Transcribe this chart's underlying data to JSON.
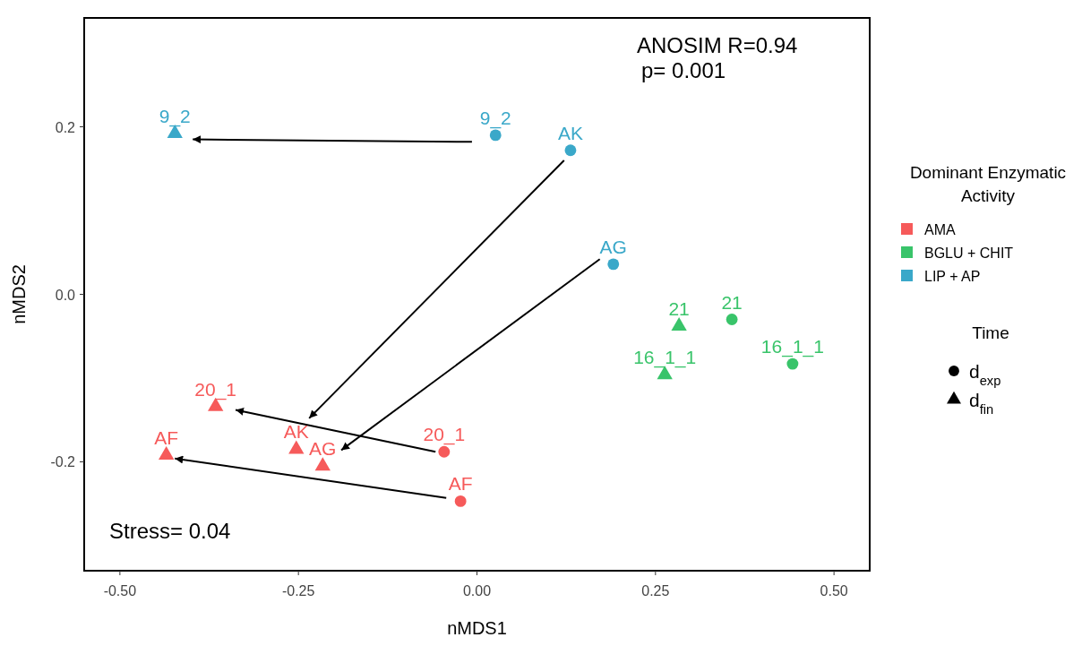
{
  "chart_data": {
    "type": "scatter",
    "xlabel": "nMDS1",
    "ylabel": "nMDS2",
    "legend_title": [
      "Dominant Enzymatic Activity",
      "Time"
    ],
    "legend": "right",
    "grid": false,
    "xlim": [
      -0.55,
      0.55
    ],
    "ylim": [
      -0.33,
      0.33
    ],
    "xticks": [
      {
        "value": -0.5,
        "label": "-0.50"
      },
      {
        "value": -0.25,
        "label": "-0.25"
      },
      {
        "value": 0,
        "label": "0.00"
      },
      {
        "value": 0.25,
        "label": "0.25"
      },
      {
        "value": 0.5,
        "label": "0.50"
      }
    ],
    "yticks": [
      {
        "value": -0.2,
        "label": "-0.2"
      },
      {
        "value": 0,
        "label": "0.0"
      },
      {
        "value": 0.2,
        "label": "0.2"
      }
    ],
    "annotations": [
      "ANOSIM R=0.94",
      "p= 0.001",
      "Stress= 0.04",
      "d$_{exp}$",
      "d$_{fin}$",
      {
        "text": "20_1",
        "x": -0.046,
        "y": -0.188
      },
      {
        "text": "AF",
        "x": -0.023,
        "y": -0.247
      },
      {
        "text": "21",
        "x": 0.357,
        "y": -0.03
      },
      {
        "text": "16_1_1",
        "x": 0.442,
        "y": -0.083
      },
      {
        "text": "9_2",
        "x": 0.026,
        "y": 0.19
      },
      {
        "text": "AK",
        "x": 0.131,
        "y": 0.172
      },
      {
        "text": "AG",
        "x": 0.191,
        "y": 0.036
      },
      {
        "text": "20_1",
        "x": -0.366,
        "y": -0.134
      },
      {
        "text": "AK",
        "x": -0.253,
        "y": -0.185
      },
      {
        "text": "AG",
        "x": -0.216,
        "y": -0.205
      },
      {
        "text": "AF",
        "x": -0.435,
        "y": -0.192
      },
      {
        "text": "21",
        "x": 0.283,
        "y": -0.038
      },
      {
        "text": "16_1_1",
        "x": 0.263,
        "y": -0.096
      },
      {
        "text": "9_2",
        "x": -0.423,
        "y": 0.192
      }
    ],
    "series": [
      {
        "name": "AMA",
        "color": "#f65a5a",
        "marker": "circle",
        "x": [
          -0.046,
          -0.023
        ],
        "values": [
          -0.188,
          -0.247
        ]
      },
      {
        "name": "BGLU + CHIT",
        "color": "#39c46a",
        "marker": "circle",
        "x": [
          0.357,
          0.442
        ],
        "values": [
          -0.03,
          -0.083
        ]
      },
      {
        "name": "LIP + AP",
        "color": "#3aa8c9",
        "marker": "circle",
        "x": [
          0.026,
          0.131,
          0.191
        ],
        "values": [
          0.19,
          0.172,
          0.036
        ]
      },
      {
        "color": "#f65a5a",
        "marker": "triangle",
        "x": [
          -0.366,
          -0.253,
          -0.216,
          -0.435
        ],
        "values": [
          -0.134,
          -0.185,
          -0.205,
          -0.192
        ]
      },
      {
        "color": "#39c46a",
        "marker": "triangle",
        "x": [
          0.283,
          0.263
        ],
        "values": [
          -0.038,
          -0.096
        ]
      },
      {
        "color": "#3aa8c9",
        "marker": "triangle",
        "x": [
          -0.423
        ],
        "values": [
          0.192
        ]
      },
      {
        "type": "line",
        "color": "#000000",
        "marker": "none",
        "x": [
          -0.007,
          -0.398
        ],
        "values": [
          0.182,
          0.185
        ]
      },
      {
        "type": "line",
        "color": "#000000",
        "marker": "none",
        "x": [
          0.122,
          -0.235
        ],
        "values": [
          0.16,
          -0.148
        ]
      },
      {
        "type": "line",
        "color": "#000000",
        "marker": "none",
        "x": [
          0.172,
          -0.19
        ],
        "values": [
          0.042,
          -0.186
        ]
      },
      {
        "type": "line",
        "color": "#000000",
        "marker": "none",
        "x": [
          -0.058,
          -0.338
        ],
        "values": [
          -0.188,
          -0.138
        ]
      },
      {
        "type": "line",
        "color": "#000000",
        "marker": "none",
        "x": [
          -0.043,
          -0.423
        ],
        "values": [
          -0.243,
          -0.196
        ]
      }
    ]
  }
}
